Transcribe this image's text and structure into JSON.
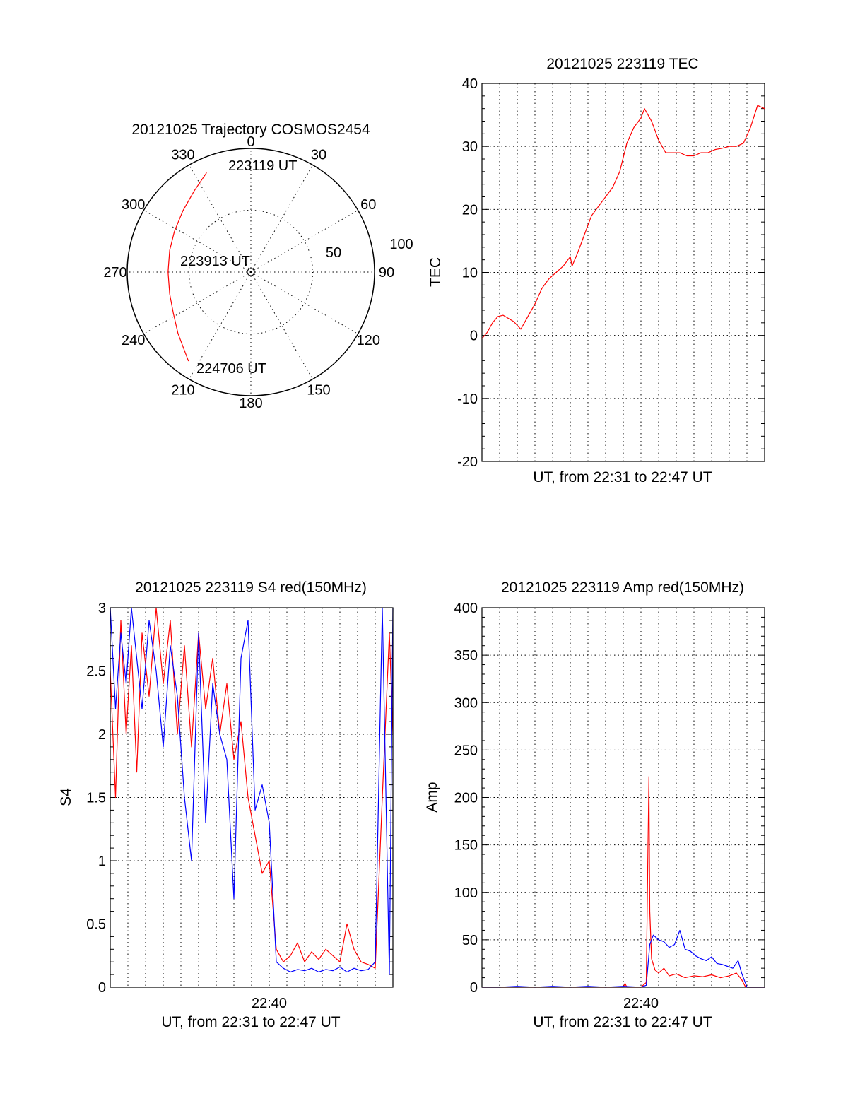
{
  "chart_data": [
    {
      "id": "polar",
      "type": "polar",
      "title": "20121025 Trajectory COSMOS2454",
      "angle_labels": [
        "0",
        "30",
        "60",
        "90",
        "120",
        "150",
        "180",
        "210",
        "240",
        "270",
        "300",
        "330"
      ],
      "angle_values": [
        0,
        30,
        60,
        90,
        120,
        150,
        180,
        210,
        240,
        270,
        300,
        330
      ],
      "radial_labels": [
        "50",
        "100"
      ],
      "radial_values": [
        50,
        100
      ],
      "rlim": [
        0,
        100
      ],
      "track_color": "#ff0000",
      "trajectory_az_r": [
        [
          336,
          88
        ],
        [
          325,
          80
        ],
        [
          312,
          74
        ],
        [
          298,
          70
        ],
        [
          285,
          68
        ],
        [
          270,
          67
        ],
        [
          255,
          68
        ],
        [
          242,
          71
        ],
        [
          230,
          77
        ],
        [
          215,
          88
        ]
      ],
      "annotations": [
        "223119 UT",
        "223913 UT",
        "224706 UT"
      ],
      "grid": true
    },
    {
      "id": "tec",
      "type": "line",
      "title": "20121025 223119 TEC",
      "xlabel": "UT, from 22:31 to 22:47 UT",
      "ylabel": "TEC",
      "xlim": [
        0,
        16
      ],
      "ylim": [
        -20,
        40
      ],
      "yticks": [
        "40",
        "30",
        "20",
        "10",
        "0",
        "-10",
        "-20"
      ],
      "ytick_values": [
        40,
        30,
        20,
        10,
        0,
        -10,
        -20
      ],
      "grid": true,
      "series": [
        {
          "color": "#ff0000",
          "x": [
            0,
            0.3,
            0.6,
            0.9,
            1.2,
            1.5,
            1.8,
            2.2,
            2.6,
            3,
            3.4,
            3.8,
            4.2,
            4.6,
            5,
            5.1,
            5.4,
            5.8,
            6.2,
            6.6,
            7,
            7.4,
            7.8,
            8.2,
            8.6,
            9,
            9.2,
            9.6,
            10,
            10.4,
            10.8,
            11.2,
            11.6,
            12,
            12.4,
            12.8,
            13.2,
            13.6,
            14,
            14.4,
            14.8,
            15.2,
            15.6,
            16
          ],
          "y": [
            -0.5,
            0.5,
            2,
            3,
            3.2,
            2.7,
            2.2,
            1,
            3,
            5,
            7.5,
            9,
            10,
            11,
            12.5,
            11,
            13,
            16,
            19,
            20.5,
            22,
            23.5,
            26,
            30.5,
            33,
            34.5,
            36,
            34,
            31,
            29,
            29,
            29,
            28.5,
            28.5,
            29,
            29,
            29.5,
            29.7,
            30,
            30,
            30.5,
            33,
            36.5,
            36
          ]
        }
      ]
    },
    {
      "id": "s4",
      "type": "line",
      "title": "20121025 223119 S4 red(150MHz)",
      "xlabel": "UT, from 22:31 to 22:47 UT",
      "ylabel": "S4",
      "xticks": [
        "22:40"
      ],
      "xtick_values": [
        9
      ],
      "xlim": [
        0,
        16
      ],
      "ylim": [
        0,
        3
      ],
      "yticks": [
        "3",
        "2.5",
        "2",
        "1.5",
        "1",
        "0.5",
        "0"
      ],
      "ytick_values": [
        3,
        2.5,
        2,
        1.5,
        1,
        0.5,
        0
      ],
      "grid": true,
      "series": [
        {
          "color": "#ff0000",
          "x": [
            0,
            0.3,
            0.6,
            0.9,
            1.2,
            1.5,
            1.8,
            2.2,
            2.6,
            3,
            3.4,
            3.8,
            4.2,
            4.6,
            5,
            5.4,
            5.8,
            6.2,
            6.6,
            7,
            7.4,
            7.8,
            8.2,
            8.6,
            9,
            9.4,
            9.8,
            10.2,
            10.6,
            11,
            11.4,
            11.8,
            12.2,
            12.6,
            13,
            13.4,
            13.8,
            14.2,
            14.6,
            15,
            15.4,
            15.8,
            16
          ],
          "y": [
            2.5,
            1.5,
            2.9,
            2.0,
            2.7,
            1.7,
            2.8,
            2.3,
            3.0,
            2.4,
            2.9,
            2.0,
            2.7,
            1.9,
            2.8,
            2.2,
            2.6,
            2.0,
            2.4,
            1.8,
            2.1,
            1.5,
            1.2,
            0.9,
            1.0,
            0.3,
            0.2,
            0.25,
            0.35,
            0.2,
            0.28,
            0.22,
            0.3,
            0.25,
            0.2,
            0.5,
            0.3,
            0.2,
            0.18,
            0.15,
            1.5,
            2.8,
            2.0
          ]
        },
        {
          "color": "#0000ff",
          "x": [
            0,
            0.3,
            0.6,
            0.9,
            1.2,
            1.5,
            1.8,
            2.2,
            2.6,
            3,
            3.4,
            3.8,
            4.2,
            4.6,
            5,
            5.4,
            5.8,
            6.2,
            6.6,
            7,
            7.4,
            7.8,
            8.2,
            8.6,
            9,
            9.4,
            9.8,
            10.2,
            10.6,
            11,
            11.4,
            11.8,
            12.2,
            12.6,
            13,
            13.4,
            13.8,
            14.2,
            14.6,
            15,
            15.4,
            15.8,
            16
          ],
          "y": [
            3.0,
            2.2,
            2.8,
            2.4,
            3.0,
            2.6,
            2.2,
            2.9,
            2.5,
            1.9,
            2.7,
            2.3,
            1.5,
            1.0,
            2.8,
            1.3,
            2.4,
            2.0,
            1.8,
            0.7,
            2.6,
            2.9,
            1.4,
            1.6,
            1.3,
            0.2,
            0.15,
            0.12,
            0.14,
            0.13,
            0.15,
            0.12,
            0.14,
            0.13,
            0.16,
            0.12,
            0.15,
            0.13,
            0.14,
            0.2,
            3.0,
            0.1,
            3.0
          ]
        }
      ]
    },
    {
      "id": "amp",
      "type": "line",
      "title": "20121025 223119 Amp red(150MHz)",
      "xlabel": "UT, from 22:31 to 22:47 UT",
      "ylabel": "Amp",
      "xticks": [
        "22:40"
      ],
      "xtick_values": [
        9
      ],
      "xlim": [
        0,
        16
      ],
      "ylim": [
        0,
        400
      ],
      "yticks": [
        "400",
        "350",
        "300",
        "250",
        "200",
        "150",
        "100",
        "50",
        "0"
      ],
      "ytick_values": [
        400,
        350,
        300,
        250,
        200,
        150,
        100,
        50,
        0
      ],
      "grid": true,
      "series": [
        {
          "color": "#ff0000",
          "x": [
            0,
            1,
            2,
            3,
            4,
            5,
            6,
            7,
            8,
            8.1,
            8.2,
            9,
            9.3,
            9.4,
            9.45,
            9.5,
            9.6,
            9.8,
            10,
            10.3,
            10.6,
            11,
            11.5,
            12,
            12.5,
            13,
            13.5,
            14,
            14.4,
            14.7,
            14.9,
            15,
            15.5,
            16
          ],
          "y": [
            0,
            0,
            0,
            0,
            0,
            0,
            0,
            0,
            0,
            4,
            0,
            0,
            5,
            150,
            222,
            80,
            30,
            18,
            15,
            20,
            12,
            14,
            10,
            12,
            11,
            13,
            10,
            12,
            15,
            8,
            1,
            0,
            0,
            0
          ]
        },
        {
          "color": "#0000ff",
          "x": [
            0,
            1,
            2,
            3,
            4,
            5,
            6,
            7,
            8,
            9,
            9.3,
            9.5,
            9.7,
            10,
            10.3,
            10.6,
            10.9,
            11.2,
            11.5,
            11.8,
            12.1,
            12.4,
            12.7,
            13,
            13.3,
            13.6,
            13.9,
            14.2,
            14.5,
            14.7,
            14.9,
            15,
            15.5,
            16
          ],
          "y": [
            0,
            0,
            1,
            0,
            1,
            0,
            1,
            0,
            1,
            0,
            2,
            45,
            55,
            50,
            48,
            42,
            45,
            60,
            40,
            38,
            33,
            30,
            28,
            32,
            25,
            24,
            22,
            20,
            28,
            15,
            5,
            0,
            0,
            0
          ]
        }
      ]
    }
  ]
}
